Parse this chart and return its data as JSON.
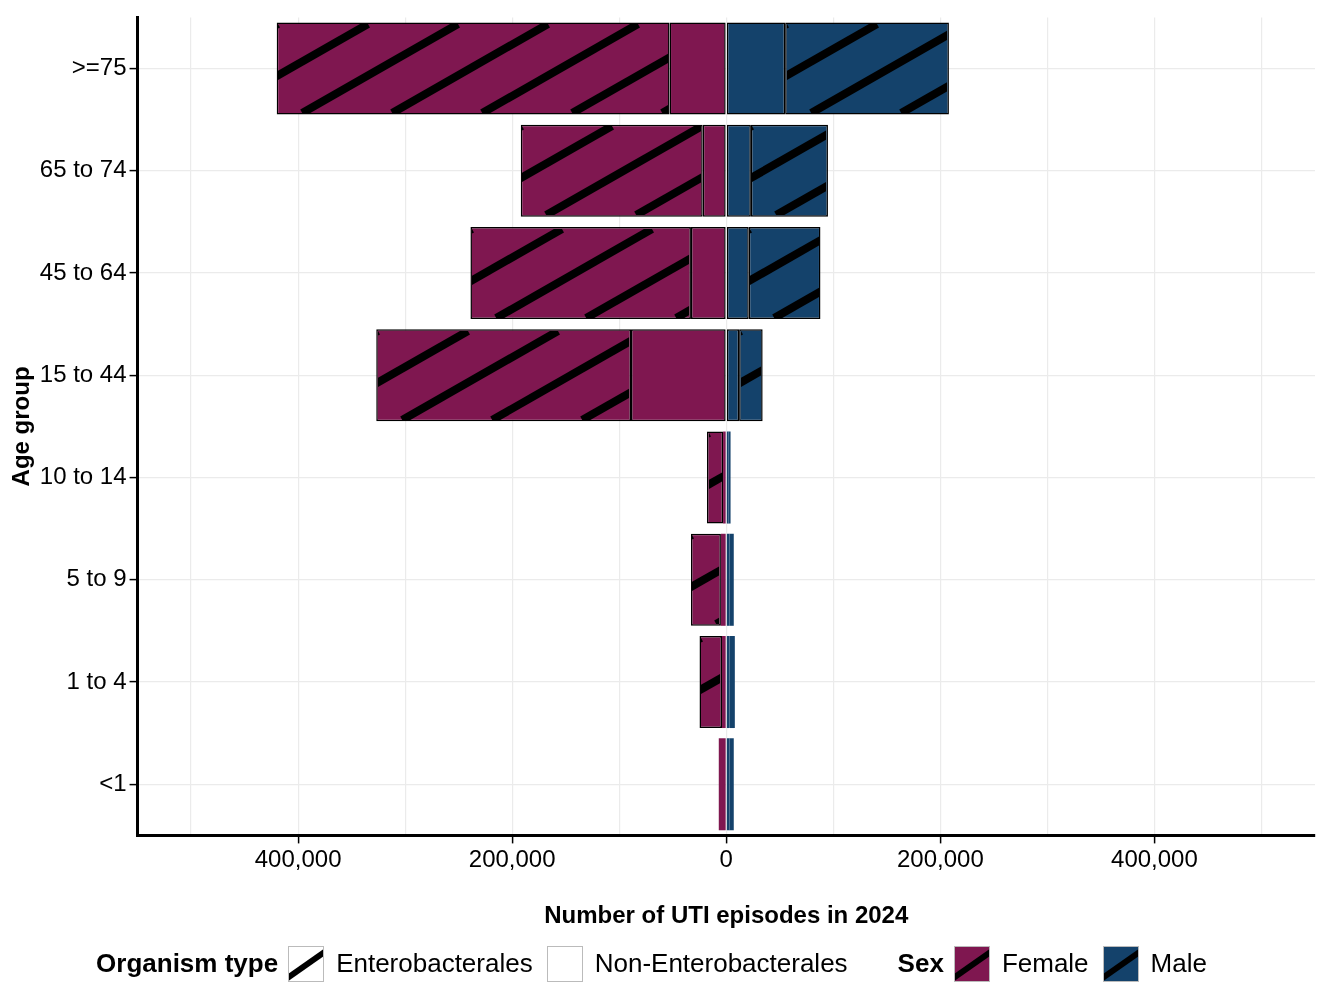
{
  "chart_data": {
    "type": "bar",
    "orientation": "horizontal",
    "stacked": true,
    "xlabel": "Number of UTI episodes in 2024",
    "ylabel": "Age group",
    "legend_title": "Organism type",
    "annotations": [
      "Enterobacterales",
      "Non-Enterobacterales",
      "Sex",
      "Female",
      "Male"
    ],
    "categories": [
      ">=75",
      "65 to 74",
      "45 to 64",
      "15 to 44",
      "10 to 14",
      "5 to 9",
      "1 to 4",
      "<1"
    ],
    "series": [
      {
        "color": "#7f1750",
        "values": [
          -53000,
          -22000,
          -33000,
          -89000,
          -3000,
          -5000,
          -4000,
          -4000
        ]
      },
      {
        "color": "#7f1750",
        "values": [
          -367000,
          -170000,
          -206000,
          -238000,
          -15000,
          -28000,
          -21000,
          -3000
        ]
      },
      {
        "color": "#14426b",
        "values": [
          55000,
          23000,
          21000,
          12000,
          2000,
          3000,
          3000,
          3000
        ]
      },
      {
        "color": "#14426b",
        "values": [
          153000,
          72000,
          67000,
          22000,
          2000,
          4000,
          5000,
          4000
        ]
      }
    ],
    "xlim": [
      -550000,
      550000
    ],
    "xticks": [
      {
        "value": -500000,
        "label": null
      },
      {
        "value": -400000,
        "label": "400,000"
      },
      {
        "value": -300000,
        "label": null
      },
      {
        "value": -200000,
        "label": "200,000"
      },
      {
        "value": -100000,
        "label": null
      },
      0,
      {
        "value": 100000,
        "label": null
      },
      {
        "value": 200000,
        "label": "200,000"
      },
      {
        "value": 300000,
        "label": null
      },
      {
        "value": 400000,
        "label": "400,000"
      },
      {
        "value": 500000,
        "label": null
      }
    ],
    "grid": true
  }
}
